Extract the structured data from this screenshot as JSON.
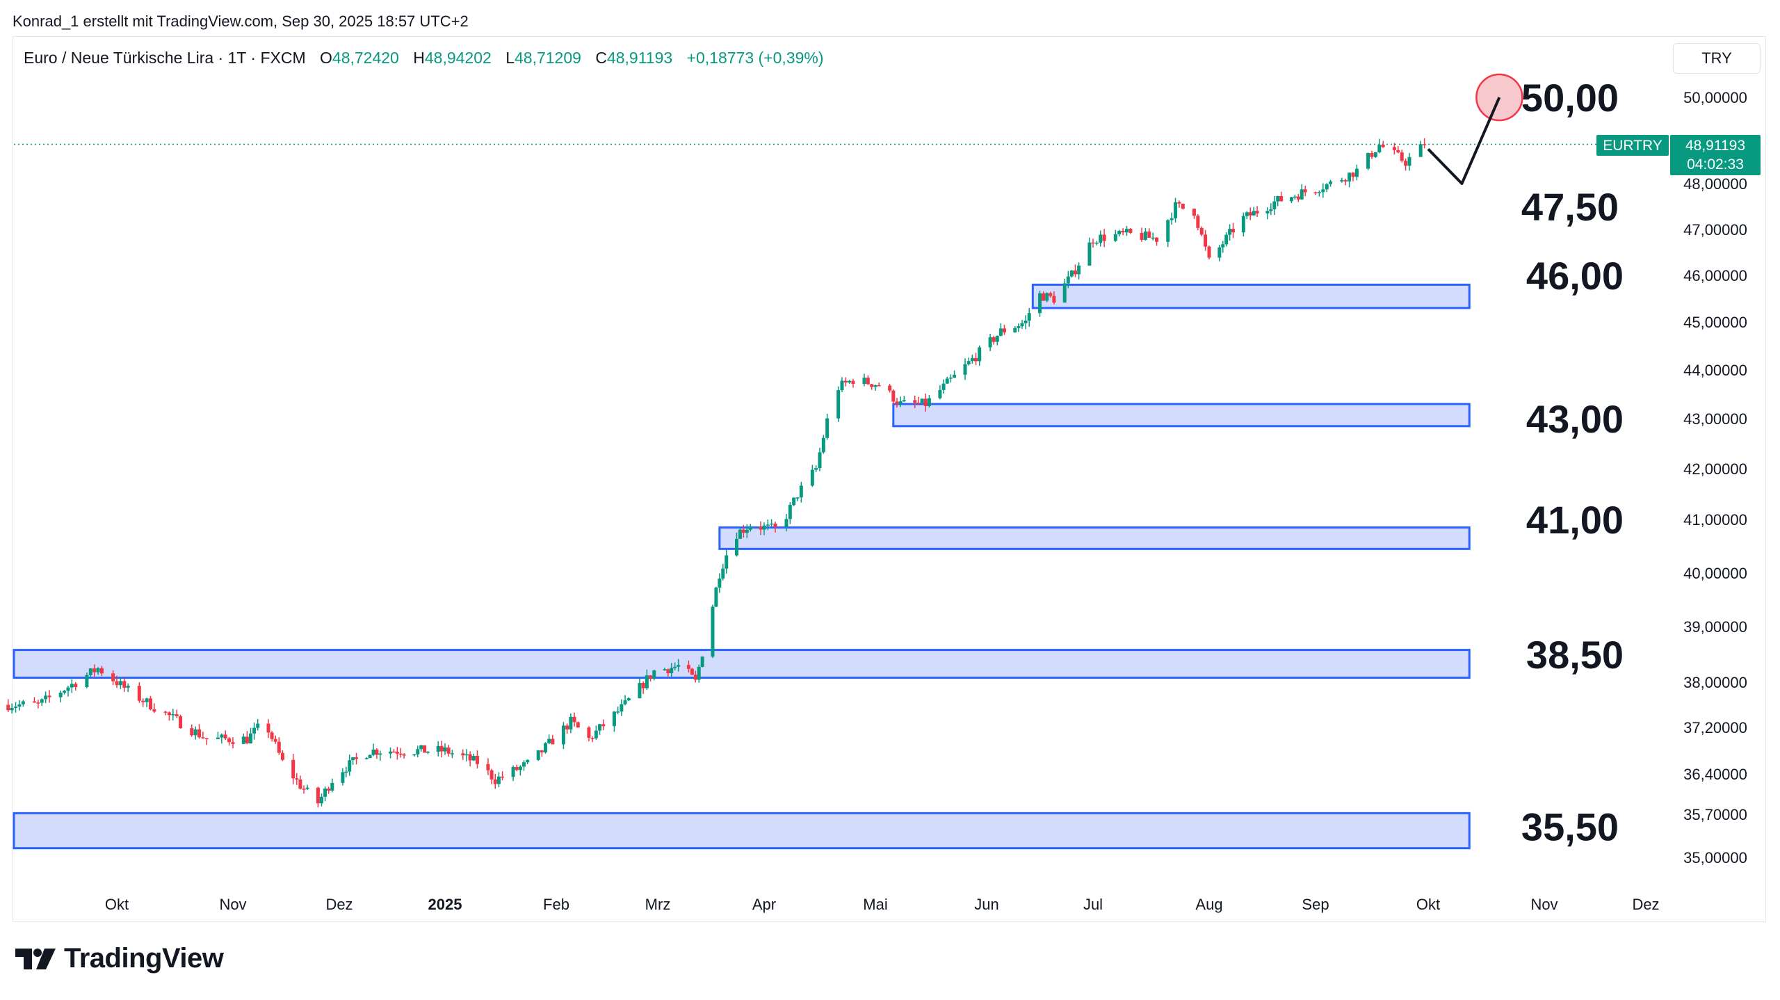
{
  "caption": "Konrad_1 erstellt mit TradingView.com, Sep 30, 2025 18:57 UTC+2",
  "legend": {
    "symbol": "Euro  / Neue Türkische Lira · 1T · FXCM",
    "open_label": "O",
    "open": "48,72420",
    "high_label": "H",
    "high": "48,94202",
    "low_label": "L",
    "low": "48,71209",
    "close_label": "C",
    "close": "48,91193",
    "change": "+0,18773 (+0,39%)"
  },
  "currency_button": "TRY",
  "price_tag": {
    "symbol": "EURTRY",
    "price": "48,91193",
    "countdown": "04:02:33"
  },
  "brand": "TradingView",
  "colors": {
    "up": "#089981",
    "down": "#f23645",
    "zone_fill": "#d3dcfc",
    "zone_border": "#2962ff"
  },
  "chart_data": {
    "type": "candlestick",
    "y_tick_labels": [
      "50,00000",
      "48,00000",
      "47,00000",
      "46,00000",
      "45,00000",
      "44,00000",
      "43,00000",
      "42,00000",
      "41,00000",
      "40,00000",
      "39,00000",
      "38,00000",
      "37,20000",
      "36,40000",
      "35,70000",
      "35,00000"
    ],
    "y_tick_values": [
      50.0,
      48.0,
      47.0,
      46.0,
      45.0,
      44.0,
      43.0,
      42.0,
      41.0,
      40.0,
      39.0,
      38.0,
      37.2,
      36.4,
      35.7,
      35.0
    ],
    "x_tick_labels": [
      "Okt",
      "Nov",
      "Dez",
      "2025",
      "Feb",
      "Mrz",
      "Apr",
      "Mai",
      "Jun",
      "Jul",
      "Aug",
      "Sep",
      "Okt",
      "Nov",
      "Dez"
    ],
    "x_tick_dates": [
      "2024-10-01",
      "2024-11-01",
      "2024-12-01",
      "2025-01-01",
      "2025-02-01",
      "2025-03-01",
      "2025-04-01",
      "2025-05-01",
      "2025-06-01",
      "2025-07-01",
      "2025-08-01",
      "2025-09-01",
      "2025-10-01",
      "2025-11-01",
      "2025-12-01"
    ],
    "last_price": 48.91193,
    "level_labels": [
      {
        "text": "50,00",
        "value": 50.0
      },
      {
        "text": "47,50",
        "value": 47.5
      },
      {
        "text": "46,00",
        "value": 46.0
      },
      {
        "text": "43,00",
        "value": 43.0
      },
      {
        "text": "41,00",
        "value": 41.0
      },
      {
        "text": "38,50",
        "value": 38.5
      },
      {
        "text": "35,50",
        "value": 35.5
      }
    ],
    "zones": [
      {
        "start": "2025-06-14",
        "end": "2025-10-12",
        "low": 45.3,
        "high": 45.8
      },
      {
        "start": "2025-05-06",
        "end": "2025-10-12",
        "low": 42.85,
        "high": 43.3
      },
      {
        "start": "2025-03-19",
        "end": "2025-10-12",
        "low": 40.45,
        "high": 40.85
      },
      {
        "start": "2024-09-01",
        "end": "2025-10-12",
        "low": 38.08,
        "high": 38.58
      },
      {
        "start": "2024-09-01",
        "end": "2025-10-12",
        "low": 35.15,
        "high": 35.72
      }
    ],
    "projection": [
      {
        "date": "2025-10-01",
        "value": 48.8
      },
      {
        "date": "2025-10-10",
        "value": 48.0
      },
      {
        "date": "2025-10-20",
        "value": 50.0
      }
    ],
    "target_marker": {
      "date": "2025-10-20",
      "value": 50.0
    },
    "price_path": [
      [
        "2024-09-01",
        37.6
      ],
      [
        "2024-09-10",
        37.6
      ],
      [
        "2024-09-20",
        38.0
      ],
      [
        "2024-09-26",
        38.25
      ],
      [
        "2024-10-05",
        37.8
      ],
      [
        "2024-10-15",
        37.4
      ],
      [
        "2024-10-25",
        37.0
      ],
      [
        "2024-11-05",
        37.0
      ],
      [
        "2024-11-10",
        37.3
      ],
      [
        "2024-11-15",
        36.6
      ],
      [
        "2024-11-20",
        36.2
      ],
      [
        "2024-11-25",
        35.9
      ],
      [
        "2024-11-30",
        36.4
      ],
      [
        "2024-12-10",
        36.8
      ],
      [
        "2024-12-20",
        36.8
      ],
      [
        "2025-01-01",
        36.8
      ],
      [
        "2025-01-10",
        36.6
      ],
      [
        "2025-01-15",
        36.3
      ],
      [
        "2025-01-25",
        36.6
      ],
      [
        "2025-02-05",
        37.3
      ],
      [
        "2025-02-10",
        37.0
      ],
      [
        "2025-02-20",
        37.6
      ],
      [
        "2025-02-28",
        38.2
      ],
      [
        "2025-03-08",
        38.3
      ],
      [
        "2025-03-12",
        38.0
      ],
      [
        "2025-03-15",
        38.8
      ],
      [
        "2025-03-19",
        40.0
      ],
      [
        "2025-03-23",
        40.7
      ],
      [
        "2025-03-28",
        40.9
      ],
      [
        "2025-04-05",
        40.8
      ],
      [
        "2025-04-10",
        41.5
      ],
      [
        "2025-04-15",
        42.0
      ],
      [
        "2025-04-20",
        43.6
      ],
      [
        "2025-04-25",
        43.8
      ],
      [
        "2025-05-02",
        43.7
      ],
      [
        "2025-05-08",
        43.3
      ],
      [
        "2025-05-15",
        43.3
      ],
      [
        "2025-05-25",
        44.0
      ],
      [
        "2025-06-05",
        44.8
      ],
      [
        "2025-06-12",
        45.0
      ],
      [
        "2025-06-15",
        45.6
      ],
      [
        "2025-06-20",
        45.5
      ],
      [
        "2025-06-25",
        46.0
      ],
      [
        "2025-07-01",
        46.8
      ],
      [
        "2025-07-10",
        46.9
      ],
      [
        "2025-07-18",
        46.8
      ],
      [
        "2025-07-23",
        47.5
      ],
      [
        "2025-07-28",
        47.4
      ],
      [
        "2025-08-01",
        46.3
      ],
      [
        "2025-08-10",
        47.2
      ],
      [
        "2025-08-20",
        47.6
      ],
      [
        "2025-08-28",
        47.8
      ],
      [
        "2025-09-05",
        48.0
      ],
      [
        "2025-09-12",
        48.3
      ],
      [
        "2025-09-18",
        48.9
      ],
      [
        "2025-09-25",
        48.5
      ],
      [
        "2025-09-30",
        48.91
      ]
    ]
  }
}
